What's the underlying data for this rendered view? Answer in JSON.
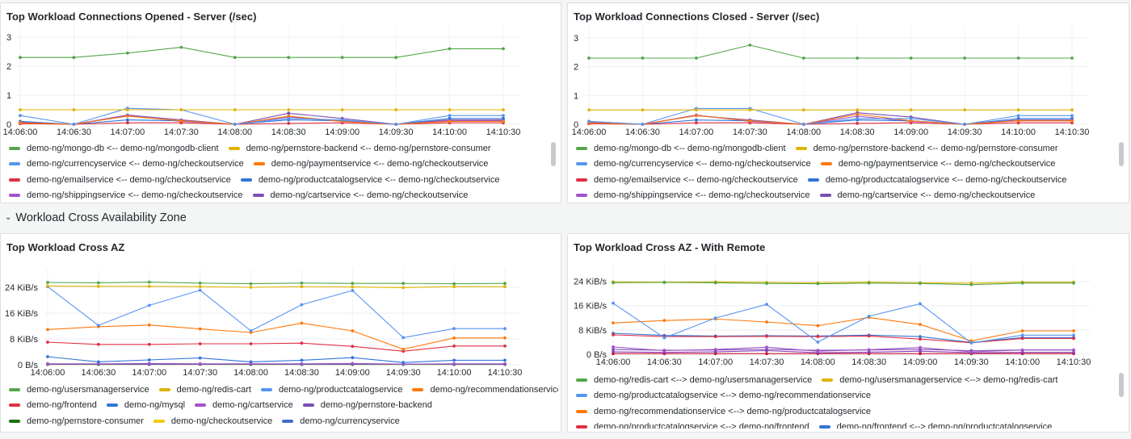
{
  "row": {
    "title": "Workload Cross Availability Zone",
    "chevron_icon": "chevron-down-icon"
  },
  "panels": [
    {
      "id": "p1",
      "title": "Top Workload Connections Opened - Server (/sec)",
      "legend_rows": [
        [
          0,
          1
        ],
        [
          2,
          3
        ],
        [
          4,
          5
        ],
        [
          6,
          7
        ]
      ],
      "chart_data": {
        "type": "line",
        "x": [
          "14:06:00",
          "14:06:30",
          "14:07:00",
          "14:07:30",
          "14:08:00",
          "14:08:30",
          "14:09:00",
          "14:09:30",
          "14:10:00",
          "14:10:30"
        ],
        "xticks": [
          "14:06:00",
          "14:06:30",
          "14:07:00",
          "14:07:30",
          "14:08:00",
          "14:08:30",
          "14:09:00",
          "14:09:30",
          "14:10:00",
          "14:10:30"
        ],
        "yticks": [
          "0",
          "1",
          "2",
          "3"
        ],
        "ylim": [
          0,
          3
        ],
        "series": [
          {
            "name": "demo-ng/mongo-db <-- demo-ng/mongodb-client",
            "color": "#56a64b",
            "values": [
              2.3,
              2.3,
              2.45,
              2.65,
              2.3,
              2.3,
              2.3,
              2.3,
              2.6,
              2.6
            ]
          },
          {
            "name": "demo-ng/pernstore-backend <-- demo-ng/pernstore-consumer",
            "color": "#e0b400",
            "values": [
              0.5,
              0.5,
              0.5,
              0.5,
              0.5,
              0.5,
              0.5,
              0.5,
              0.5,
              0.5
            ]
          },
          {
            "name": "demo-ng/currencyservice <-- demo-ng/checkoutservice",
            "color": "#5794f2",
            "values": [
              0.3,
              0.0,
              0.55,
              0.5,
              0.0,
              0.2,
              0.15,
              0.0,
              0.3,
              0.3
            ]
          },
          {
            "name": "demo-ng/paymentservice <-- demo-ng/checkoutservice",
            "color": "#ff780a",
            "values": [
              0.05,
              0.0,
              0.28,
              0.12,
              0.0,
              0.28,
              0.1,
              0.0,
              0.1,
              0.1
            ]
          },
          {
            "name": "demo-ng/emailservice <-- demo-ng/checkoutservice",
            "color": "#e02f44",
            "values": [
              0.02,
              0.0,
              0.05,
              0.05,
              0.0,
              0.03,
              0.05,
              0.0,
              0.05,
              0.05
            ]
          },
          {
            "name": "demo-ng/productcatalogservice <-- demo-ng/checkoutservice",
            "color": "#3274d9",
            "values": [
              0.1,
              0.0,
              0.15,
              0.12,
              0.0,
              0.15,
              0.12,
              0.0,
              0.2,
              0.2
            ]
          },
          {
            "name": "demo-ng/shippingservice <-- demo-ng/checkoutservice",
            "color": "#a352cc",
            "values": [
              0.05,
              0.0,
              0.3,
              0.1,
              0.0,
              0.25,
              0.1,
              0.0,
              0.12,
              0.12
            ]
          },
          {
            "name": "demo-ng/cartservice <-- demo-ng/checkoutservice",
            "color": "#7c4eb1",
            "values": [
              0.08,
              0.0,
              0.32,
              0.15,
              0.0,
              0.38,
              0.2,
              0.0,
              0.15,
              0.15
            ]
          }
        ]
      }
    },
    {
      "id": "p2",
      "title": "Top Workload Connections Closed - Server (/sec)",
      "legend_rows": [
        [
          0,
          1
        ],
        [
          2,
          3
        ],
        [
          4,
          5
        ],
        [
          6,
          7
        ]
      ],
      "chart_data": {
        "type": "line",
        "x": [
          "14:06:00",
          "14:06:30",
          "14:07:00",
          "14:07:30",
          "14:08:00",
          "14:08:30",
          "14:09:00",
          "14:09:30",
          "14:10:00",
          "14:10:30"
        ],
        "xticks": [
          "14:06:00",
          "14:06:30",
          "14:07:00",
          "14:07:30",
          "14:08:00",
          "14:08:30",
          "14:09:00",
          "14:09:30",
          "14:10:00",
          "14:10:30"
        ],
        "yticks": [
          "0",
          "1",
          "2",
          "3"
        ],
        "ylim": [
          0,
          3
        ],
        "series": [
          {
            "name": "demo-ng/mongo-db <-- demo-ng/mongodb-client",
            "color": "#56a64b",
            "values": [
              2.3,
              2.3,
              2.3,
              2.75,
              2.3,
              2.3,
              2.3,
              2.3,
              2.3,
              2.3
            ]
          },
          {
            "name": "demo-ng/pernstore-backend <-- demo-ng/pernstore-consumer",
            "color": "#e0b400",
            "values": [
              0.5,
              0.5,
              0.5,
              0.5,
              0.5,
              0.5,
              0.5,
              0.5,
              0.5,
              0.5
            ]
          },
          {
            "name": "demo-ng/currencyservice <-- demo-ng/checkoutservice",
            "color": "#5794f2",
            "values": [
              0.1,
              0.0,
              0.55,
              0.55,
              0.0,
              0.2,
              0.2,
              0.0,
              0.3,
              0.3
            ]
          },
          {
            "name": "demo-ng/paymentservice <-- demo-ng/checkoutservice",
            "color": "#ff780a",
            "values": [
              0.05,
              0.0,
              0.3,
              0.12,
              0.0,
              0.35,
              0.12,
              0.0,
              0.12,
              0.12
            ]
          },
          {
            "name": "demo-ng/emailservice <-- demo-ng/checkoutservice",
            "color": "#e02f44",
            "values": [
              0.02,
              0.0,
              0.05,
              0.05,
              0.0,
              0.03,
              0.05,
              0.0,
              0.05,
              0.05
            ]
          },
          {
            "name": "demo-ng/productcatalogservice <-- demo-ng/checkoutservice",
            "color": "#3274d9",
            "values": [
              0.1,
              0.0,
              0.15,
              0.12,
              0.0,
              0.15,
              0.12,
              0.0,
              0.2,
              0.2
            ]
          },
          {
            "name": "demo-ng/shippingservice <-- demo-ng/checkoutservice",
            "color": "#a352cc",
            "values": [
              0.05,
              0.0,
              0.32,
              0.1,
              0.0,
              0.28,
              0.1,
              0.0,
              0.12,
              0.12
            ]
          },
          {
            "name": "demo-ng/cartservice <-- demo-ng/checkoutservice",
            "color": "#7c4eb1",
            "values": [
              0.08,
              0.0,
              0.3,
              0.15,
              0.0,
              0.4,
              0.25,
              0.0,
              0.15,
              0.15
            ]
          }
        ]
      }
    },
    {
      "id": "p3",
      "title": "Top Workload Cross AZ",
      "legend_rows": [
        [
          0,
          1,
          2,
          3
        ],
        [
          4,
          5,
          6,
          7
        ],
        [
          8,
          9,
          10
        ]
      ],
      "chart_data": {
        "type": "line",
        "x": [
          "14:05:52",
          "14:06:22",
          "14:06:52",
          "14:07:22",
          "14:07:52",
          "14:08:22",
          "14:08:52",
          "14:09:22",
          "14:09:52",
          "14:10:22"
        ],
        "xticks": [
          "14:06:00",
          "14:06:30",
          "14:07:00",
          "14:07:30",
          "14:08:00",
          "14:08:30",
          "14:09:00",
          "14:09:30",
          "14:10:00",
          "14:10:30"
        ],
        "yticks": [
          "0 B/s",
          "8 KiB/s",
          "16 KiB/s",
          "24 KiB/s"
        ],
        "ylim": [
          0,
          26
        ],
        "series": [
          {
            "name": "demo-ng/usersmanagerservice",
            "color": "#56a64b",
            "values": [
              25.5,
              25.4,
              25.6,
              25.3,
              25.1,
              25.3,
              25.2,
              25.2,
              25.1,
              25.2
            ]
          },
          {
            "name": "demo-ng/redis-cart",
            "color": "#e0b400",
            "values": [
              24.4,
              24.3,
              24.3,
              24.2,
              24.0,
              24.2,
              24.1,
              23.9,
              24.2,
              24.2
            ]
          },
          {
            "name": "demo-ng/productcatalogservice",
            "color": "#5794f2",
            "values": [
              24.2,
              12.2,
              18.4,
              23.1,
              10.5,
              18.6,
              23.0,
              8.4,
              11.2,
              11.2
            ]
          },
          {
            "name": "demo-ng/recommendationservice",
            "color": "#ff780a",
            "values": [
              10.9,
              11.8,
              12.3,
              11.1,
              10.0,
              12.9,
              10.5,
              4.8,
              8.3,
              8.3
            ]
          },
          {
            "name": "demo-ng/frontend",
            "color": "#e02f44",
            "values": [
              7.0,
              6.3,
              6.3,
              6.5,
              6.5,
              6.7,
              5.7,
              4.2,
              5.8,
              5.8
            ]
          },
          {
            "name": "demo-ng/mysql",
            "color": "#3274d9",
            "values": [
              2.5,
              0.9,
              1.5,
              2.1,
              0.9,
              1.4,
              2.2,
              0.7,
              1.4,
              1.4
            ]
          },
          {
            "name": "demo-ng/cartservice",
            "color": "#a352cc",
            "values": [
              0.3,
              0.3,
              0.4,
              0.3,
              0.3,
              0.3,
              0.4,
              0.2,
              0.3,
              0.3
            ]
          },
          {
            "name": "demo-ng/pernstore-backend",
            "color": "#7c4eb1",
            "values": [
              0.2,
              0.2,
              0.2,
              0.2,
              0.2,
              0.2,
              0.2,
              0.2,
              0.2,
              0.2
            ]
          },
          {
            "name": "demo-ng/pernstore-consumer",
            "color": "#19730e",
            "values": [
              0.1,
              0.1,
              0.1,
              0.1,
              0.1,
              0.1,
              0.1,
              0.1,
              0.1,
              0.1
            ]
          },
          {
            "name": "demo-ng/checkoutservice",
            "color": "#f2cc0c",
            "values": [
              0.15,
              0.1,
              0.2,
              0.15,
              0.1,
              0.2,
              0.15,
              0.1,
              0.15,
              0.15
            ]
          },
          {
            "name": "demo-ng/currencyservice",
            "color": "#3f6fc4",
            "values": [
              0.2,
              0.15,
              0.25,
              0.2,
              0.15,
              0.2,
              0.2,
              0.15,
              0.2,
              0.2
            ]
          }
        ]
      }
    },
    {
      "id": "p4",
      "title": "Top Workload Cross AZ - With Remote",
      "legend_rows": [
        [
          0,
          1
        ],
        [
          2
        ],
        [
          3
        ],
        [
          4,
          5
        ]
      ],
      "chart_data": {
        "type": "line",
        "x": [
          "14:06:00",
          "14:06:30",
          "14:07:00",
          "14:07:30",
          "14:08:00",
          "14:08:30",
          "14:09:00",
          "14:09:30",
          "14:10:00",
          "14:10:30"
        ],
        "xticks": [
          "14:06:00",
          "14:06:30",
          "14:07:00",
          "14:07:30",
          "14:08:00",
          "14:08:30",
          "14:09:00",
          "14:09:30",
          "14:10:00",
          "14:10:30"
        ],
        "yticks": [
          "0 B/s",
          "8 KiB/s",
          "16 KiB/s",
          "24 KiB/s"
        ],
        "ylim": [
          0,
          26
        ],
        "series": [
          {
            "name": "demo-ng/redis-cart <--> demo-ng/usersmanagerservice",
            "color": "#56a64b",
            "values": [
              23.5,
              23.6,
              23.5,
              23.3,
              23.2,
              23.4,
              23.3,
              22.9,
              23.4,
              23.4
            ]
          },
          {
            "name": "demo-ng/usersmanagerservice <--> demo-ng/redis-cart",
            "color": "#e0b400",
            "values": [
              23.8,
              23.7,
              23.8,
              23.6,
              23.5,
              23.7,
              23.5,
              23.4,
              23.7,
              23.7
            ]
          },
          {
            "name": "demo-ng/productcatalogservice <--> demo-ng/recommendationservice",
            "color": "#5794f2",
            "values": [
              16.8,
              5.4,
              11.9,
              16.4,
              4.0,
              12.5,
              16.6,
              3.7,
              6.3,
              6.3
            ]
          },
          {
            "name": "demo-ng/recommendationservice <--> demo-ng/productcatalogservice",
            "color": "#ff780a",
            "values": [
              10.3,
              11.1,
              11.6,
              10.6,
              9.4,
              12.1,
              9.8,
              4.4,
              7.7,
              7.7
            ]
          },
          {
            "name": "demo-ng/productcatalogservice <--> demo-ng/frontend",
            "color": "#e02f44",
            "values": [
              6.4,
              5.8,
              5.8,
              5.9,
              5.8,
              6.0,
              5.0,
              3.8,
              5.2,
              5.2
            ]
          },
          {
            "name": "demo-ng/frontend <--> demo-ng/productcatalogservice",
            "color": "#3274d9",
            "values": [
              6.9,
              6.2,
              6.0,
              6.1,
              6.0,
              6.3,
              5.8,
              3.9,
              5.5,
              5.5
            ]
          },
          {
            "name": "",
            "color": "#a352cc",
            "values": [
              2.4,
              1.2,
              1.6,
              2.3,
              1.0,
              1.5,
              2.2,
              0.8,
              1.4,
              1.4
            ]
          },
          {
            "name": "",
            "color": "#7c4eb1",
            "values": [
              1.6,
              1.3,
              1.4,
              1.6,
              1.3,
              1.4,
              1.6,
              1.2,
              1.4,
              1.4
            ]
          },
          {
            "name": "",
            "color": "#8f3bb8",
            "values": [
              0.8,
              0.6,
              0.8,
              1.2,
              0.5,
              0.7,
              1.0,
              0.5,
              0.6,
              0.6
            ]
          },
          {
            "name": "",
            "color": "#c4162a",
            "values": [
              0.2,
              0.2,
              0.2,
              0.2,
              0.2,
              0.2,
              0.2,
              0.2,
              0.2,
              0.2
            ]
          }
        ]
      }
    }
  ]
}
